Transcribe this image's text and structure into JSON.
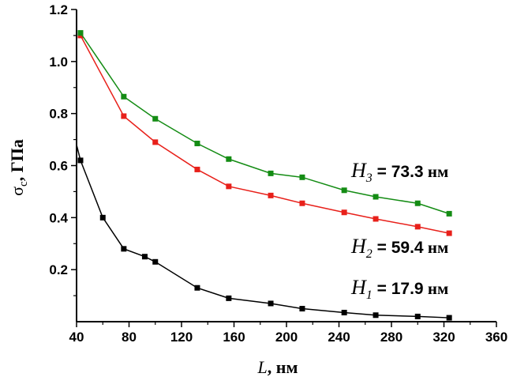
{
  "chart_data": {
    "type": "line",
    "xlabel_var": "L",
    "xlabel_unit": ", нм",
    "ylabel_var": "σ",
    "ylabel_sub": "c",
    "ylabel_unit": ", ГПа",
    "xlim": [
      40,
      360
    ],
    "ylim": [
      0,
      1.2
    ],
    "x_ticks": [
      40,
      80,
      120,
      160,
      200,
      240,
      280,
      320,
      360
    ],
    "y_ticks": [
      0.2,
      0.4,
      0.6,
      0.8,
      1.0,
      1.2
    ],
    "x_tick_labels": [
      "40",
      "80",
      "120",
      "160",
      "200",
      "240",
      "280",
      "320",
      "360"
    ],
    "y_tick_labels": [
      "0.2",
      "0.4",
      "0.6",
      "0.8",
      "1.0",
      "1.2"
    ],
    "grid": false,
    "legend": "none",
    "series": [
      {
        "color": "#000000",
        "line_start": [
          40,
          0.68
        ],
        "points": [
          [
            43,
            0.62
          ],
          [
            60,
            0.4
          ],
          [
            76,
            0.28
          ],
          [
            92,
            0.25
          ],
          [
            100,
            0.23
          ],
          [
            132,
            0.13
          ],
          [
            156,
            0.09
          ],
          [
            188,
            0.07
          ],
          [
            212,
            0.05
          ],
          [
            244,
            0.035
          ],
          [
            268,
            0.025
          ],
          [
            300,
            0.02
          ],
          [
            324,
            0.015
          ]
        ]
      },
      {
        "color": "#e8201a",
        "points": [
          [
            43,
            1.1
          ],
          [
            76,
            0.79
          ],
          [
            100,
            0.69
          ],
          [
            132,
            0.585
          ],
          [
            156,
            0.52
          ],
          [
            188,
            0.485
          ],
          [
            212,
            0.455
          ],
          [
            244,
            0.42
          ],
          [
            268,
            0.395
          ],
          [
            300,
            0.365
          ],
          [
            324,
            0.34
          ]
        ]
      },
      {
        "color": "#148c14",
        "points": [
          [
            43,
            1.11
          ],
          [
            76,
            0.865
          ],
          [
            100,
            0.78
          ],
          [
            132,
            0.685
          ],
          [
            156,
            0.625
          ],
          [
            188,
            0.57
          ],
          [
            212,
            0.555
          ],
          [
            244,
            0.505
          ],
          [
            268,
            0.48
          ],
          [
            300,
            0.455
          ],
          [
            324,
            0.415
          ]
        ]
      }
    ],
    "annotations": [
      {
        "symbol": "H",
        "sub": "3",
        "value": " = 73.3",
        "unit": " нм"
      },
      {
        "symbol": "H",
        "sub": "2",
        "value": " = 59.4",
        "unit": " нм"
      },
      {
        "symbol": "H",
        "sub": "1",
        "value": " = 17.9",
        "unit": " нм"
      }
    ]
  }
}
